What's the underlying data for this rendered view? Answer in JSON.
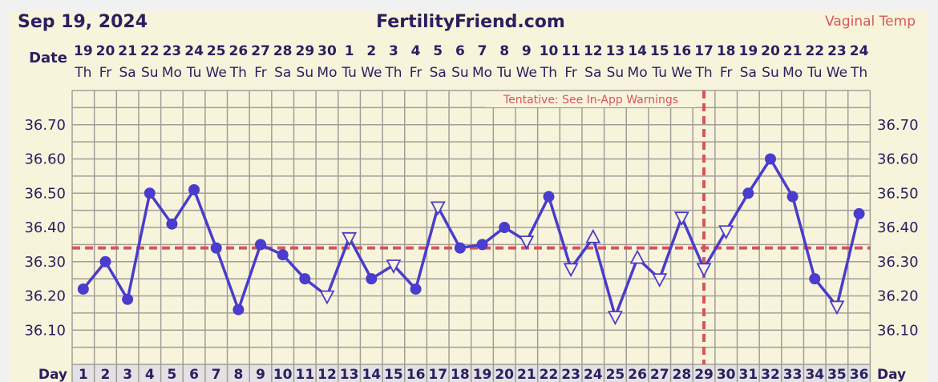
{
  "header": {
    "date": "Sep 19, 2024",
    "site": "FertilityFriend.com",
    "temp_type": "Vaginal Temp",
    "date_label": "Date",
    "day_label": "Day",
    "tentative_note": "Tentative: See In-App Warnings"
  },
  "colors": {
    "line": "#4a3ccc",
    "coverline": "#d9545a",
    "text": "#2a2060",
    "panel": "#f8f4dc",
    "grid": "#a09e98"
  },
  "chart_data": {
    "type": "line",
    "title": "FertilityFriend.com",
    "xlabel": "Day",
    "ylabel": "",
    "ylim": [
      36.0,
      36.8
    ],
    "y_ticks": [
      "36.70",
      "36.60",
      "36.50",
      "36.40",
      "36.30",
      "36.20",
      "36.10"
    ],
    "y_tick_values": [
      36.7,
      36.6,
      36.5,
      36.4,
      36.3,
      36.2,
      36.1
    ],
    "grid": true,
    "days": [
      1,
      2,
      3,
      4,
      5,
      6,
      7,
      8,
      9,
      10,
      11,
      12,
      13,
      14,
      15,
      16,
      17,
      18,
      19,
      20,
      21,
      22,
      23,
      24,
      25,
      26,
      27,
      28,
      29,
      30,
      31,
      32,
      33,
      34,
      35,
      36
    ],
    "dates": [
      "19",
      "20",
      "21",
      "22",
      "23",
      "24",
      "25",
      "26",
      "27",
      "28",
      "29",
      "30",
      "1",
      "2",
      "3",
      "4",
      "5",
      "6",
      "7",
      "8",
      "9",
      "10",
      "11",
      "12",
      "13",
      "14",
      "15",
      "16",
      "17",
      "18",
      "19",
      "20",
      "21",
      "22",
      "23",
      "24"
    ],
    "weekdays": [
      "Th",
      "Fr",
      "Sa",
      "Su",
      "Mo",
      "Tu",
      "We",
      "Th",
      "Fr",
      "Sa",
      "Su",
      "Mo",
      "Tu",
      "We",
      "Th",
      "Fr",
      "Sa",
      "Su",
      "Mo",
      "Tu",
      "We",
      "Th",
      "Fr",
      "Sa",
      "Su",
      "Mo",
      "Tu",
      "We",
      "Th",
      "Fr",
      "Sa",
      "Su",
      "Mo",
      "Tu",
      "We",
      "Th"
    ],
    "series": [
      {
        "name": "Temperature",
        "values": [
          36.22,
          36.3,
          36.19,
          36.5,
          36.41,
          36.51,
          36.34,
          36.16,
          36.35,
          36.32,
          36.25,
          36.2,
          36.37,
          36.25,
          36.29,
          36.22,
          36.46,
          36.34,
          36.35,
          36.4,
          36.36,
          36.49,
          36.28,
          36.37,
          36.14,
          36.31,
          36.25,
          36.43,
          36.28,
          36.39,
          36.5,
          36.6,
          36.49,
          36.25,
          36.17,
          36.44
        ],
        "markers": [
          "dot",
          "dot",
          "dot",
          "dot",
          "dot",
          "dot",
          "dot",
          "dot",
          "dot",
          "dot",
          "dot",
          "tri-down",
          "tri-down",
          "dot",
          "tri-down",
          "dot",
          "tri-down",
          "dot",
          "dot",
          "dot",
          "tri-down",
          "dot",
          "tri-down",
          "tri-up",
          "tri-down",
          "tri-up",
          "tri-down",
          "tri-down",
          "tri-down",
          "tri-down",
          "dot",
          "dot",
          "dot",
          "dot",
          "tri-down",
          "dot"
        ]
      }
    ],
    "coverline": 36.34,
    "ovulation_day": 29
  }
}
